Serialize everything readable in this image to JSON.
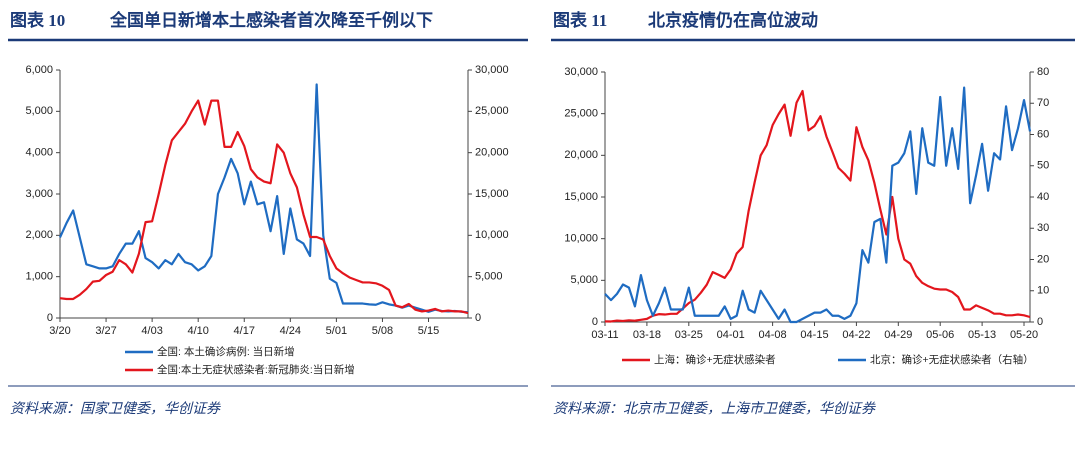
{
  "chart_data": [
    {
      "type": "line",
      "figure": "图表 10",
      "title": "全国单日新增本土感染者首次降至千例以下",
      "source": "资料来源：国家卫健委，华创证券",
      "categories": [
        "3/20",
        null,
        null,
        null,
        null,
        null,
        null,
        "3/27",
        null,
        null,
        null,
        null,
        null,
        null,
        "4/03",
        null,
        null,
        null,
        null,
        null,
        null,
        "4/10",
        null,
        null,
        null,
        null,
        null,
        null,
        "4/17",
        null,
        null,
        null,
        null,
        null,
        null,
        "4/24",
        null,
        null,
        null,
        null,
        null,
        null,
        "5/01",
        null,
        null,
        null,
        null,
        null,
        null,
        "5/08",
        null,
        null,
        null,
        null,
        null,
        null,
        "5/15",
        null,
        null,
        null,
        null,
        null,
        null
      ],
      "ylim": [
        0,
        6000
      ],
      "yticks": [
        0,
        {
          "value": 1000,
          "label": "1,000"
        },
        {
          "value": 2000,
          "label": "2,000"
        },
        {
          "value": 3000,
          "label": "3,000"
        },
        {
          "value": 4000,
          "label": "4,000"
        },
        {
          "value": 5000,
          "label": "5,000"
        },
        {
          "value": 6000,
          "label": "6,000"
        }
      ],
      "y2lim": [
        0,
        30000
      ],
      "y2ticks": [
        0,
        {
          "value": 5000,
          "label": "5,000"
        },
        {
          "value": 10000,
          "label": "10,000"
        },
        {
          "value": 15000,
          "label": "15,000"
        },
        {
          "value": 20000,
          "label": "20,000"
        },
        {
          "value": 25000,
          "label": "25,000"
        },
        {
          "value": 30000,
          "label": "30,000"
        }
      ],
      "series": [
        {
          "name": "全国:  本土确诊病例:  当日新增",
          "color": "#1f6cc2",
          "values": [
            1950,
            2300,
            2600,
            1950,
            1300,
            1250,
            1200,
            1200,
            1250,
            1550,
            1800,
            1800,
            2100,
            1450,
            1350,
            1200,
            1400,
            1300,
            1550,
            1350,
            1300,
            1150,
            1250,
            1500,
            3000,
            3400,
            3850,
            3500,
            2750,
            3300,
            2750,
            2800,
            2100,
            2950,
            1550,
            2650,
            1900,
            1800,
            1500,
            5650,
            2000,
            950,
            850,
            350,
            350,
            350,
            350,
            330,
            320,
            380,
            330,
            300,
            250,
            300,
            250,
            200,
            150,
            200,
            170,
            160,
            170,
            150,
            140
          ]
        },
        {
          "name": "全国:本土无症状感染者:新冠肺炎:当日新增",
          "color": "#e3161d",
          "axis": "y2",
          "values": [
            2400,
            2300,
            2300,
            2800,
            3500,
            4400,
            4500,
            5200,
            5600,
            7000,
            6500,
            5500,
            7800,
            11600,
            11700,
            15000,
            18500,
            21500,
            22500,
            23500,
            25000,
            26300,
            23400,
            26300,
            26300,
            20700,
            20700,
            22500,
            20800,
            18000,
            17000,
            16500,
            16300,
            21000,
            20000,
            17500,
            15800,
            12500,
            9800,
            9800,
            9500,
            7500,
            6000,
            5400,
            4900,
            4600,
            4300,
            4300,
            4200,
            3900,
            3400,
            1500,
            1300,
            1700,
            1000,
            800,
            900,
            1100,
            800,
            900,
            800,
            800,
            600
          ]
        }
      ]
    },
    {
      "type": "line",
      "figure": "图表 11",
      "title": "北京疫情仍在高位波动",
      "source": "资料来源：北京市卫健委，上海市卫健委，华创证券",
      "categories": [
        "03-11",
        null,
        null,
        null,
        null,
        null,
        null,
        "03-18",
        null,
        null,
        null,
        null,
        null,
        null,
        "03-25",
        null,
        null,
        null,
        null,
        null,
        null,
        "04-01",
        null,
        null,
        null,
        null,
        null,
        null,
        "04-08",
        null,
        null,
        null,
        null,
        null,
        null,
        "04-15",
        null,
        null,
        null,
        null,
        null,
        null,
        "04-22",
        null,
        null,
        null,
        null,
        null,
        null,
        "04-29",
        null,
        null,
        null,
        null,
        null,
        null,
        "05-06",
        null,
        null,
        null,
        null,
        null,
        null,
        "05-13",
        null,
        null,
        null,
        null,
        null,
        null,
        "05-20",
        null
      ],
      "ylim": [
        0,
        30000
      ],
      "yticks": [
        0,
        {
          "value": 5000,
          "label": "5,000"
        },
        {
          "value": 10000,
          "label": "10,000"
        },
        {
          "value": 15000,
          "label": "15,000"
        },
        {
          "value": 20000,
          "label": "20,000"
        },
        {
          "value": 25000,
          "label": "25,000"
        },
        {
          "value": 30000,
          "label": "30,000"
        }
      ],
      "y2lim": [
        0,
        80
      ],
      "y2ticks": [
        0,
        10,
        20,
        30,
        40,
        50,
        60,
        70,
        80
      ],
      "series": [
        {
          "name": "上海：确诊+无症状感染者",
          "color": "#e3161d",
          "values": [
            78,
            64,
            169,
            130,
            202,
            158,
            260,
            374,
            758,
            941,
            896,
            981,
            983,
            1609,
            2269,
            2678,
            3500,
            4477,
            5982,
            5653,
            5298,
            6311,
            8226,
            9006,
            13354,
            16766,
            19982,
            21222,
            23624,
            24944,
            26087,
            22348,
            26330,
            27719,
            23000,
            23513,
            24700,
            22248,
            20417,
            18495,
            17803,
            16972,
            23370,
            21000,
            19400,
            16700,
            13500,
            10500,
            15000,
            10000,
            7500,
            7000,
            5500,
            4700,
            4300,
            4000,
            3900,
            3900,
            3600,
            3000,
            1500,
            1500,
            2000,
            1700,
            1400,
            1000,
            1000,
            800,
            800,
            900,
            800,
            600
          ]
        },
        {
          "name": "北京：确诊+无症状感染者（右轴）",
          "color": "#1f6cc2",
          "axis": "y2",
          "values": [
            9,
            7,
            9,
            12,
            11,
            5,
            15,
            7,
            2,
            6,
            11,
            4,
            4,
            4,
            11,
            2,
            2,
            2,
            2,
            2,
            5,
            1,
            2,
            10,
            4,
            3,
            10,
            7,
            4,
            1,
            4,
            0,
            0,
            1,
            2,
            3,
            3,
            4,
            2,
            2,
            1,
            2,
            6,
            23,
            19,
            32,
            33,
            19,
            50,
            51,
            54,
            61,
            41,
            62,
            51,
            50,
            72,
            50,
            62,
            49,
            75,
            38,
            47,
            57,
            42,
            54,
            52,
            69,
            55,
            62,
            71,
            61
          ]
        }
      ]
    }
  ]
}
